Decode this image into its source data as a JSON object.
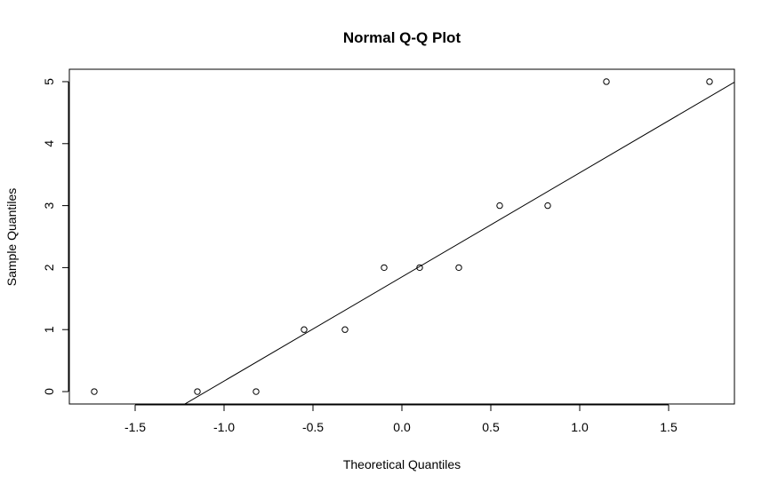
{
  "chart_data": {
    "type": "scatter",
    "title": "Normal Q-Q Plot",
    "xlabel": "Theoretical Quantiles",
    "ylabel": "Sample Quantiles",
    "xlim": [
      -1.87,
      1.87
    ],
    "ylim": [
      -0.2,
      5.2
    ],
    "x_ticks": [
      -1.5,
      -1.0,
      -0.5,
      0.0,
      0.5,
      1.0,
      1.5
    ],
    "x_tick_labels": [
      "-1.5",
      "-1.0",
      "-0.5",
      "0.0",
      "0.5",
      "1.0",
      "1.5"
    ],
    "y_ticks": [
      0,
      1,
      2,
      3,
      4,
      5
    ],
    "y_tick_labels": [
      "0",
      "1",
      "2",
      "3",
      "4",
      "5"
    ],
    "points": [
      {
        "x": -1.73,
        "y": 0
      },
      {
        "x": -1.15,
        "y": 0
      },
      {
        "x": -0.82,
        "y": 0
      },
      {
        "x": -0.55,
        "y": 1
      },
      {
        "x": -0.32,
        "y": 1
      },
      {
        "x": -0.1,
        "y": 2
      },
      {
        "x": 0.1,
        "y": 2
      },
      {
        "x": 0.32,
        "y": 2
      },
      {
        "x": 0.55,
        "y": 3
      },
      {
        "x": 0.82,
        "y": 3
      },
      {
        "x": 1.15,
        "y": 5
      },
      {
        "x": 1.73,
        "y": 5
      }
    ],
    "reference_line": {
      "intercept": 1.85,
      "slope": 1.68
    },
    "grid": false,
    "point_style": "open-circle",
    "color": "#000000"
  }
}
